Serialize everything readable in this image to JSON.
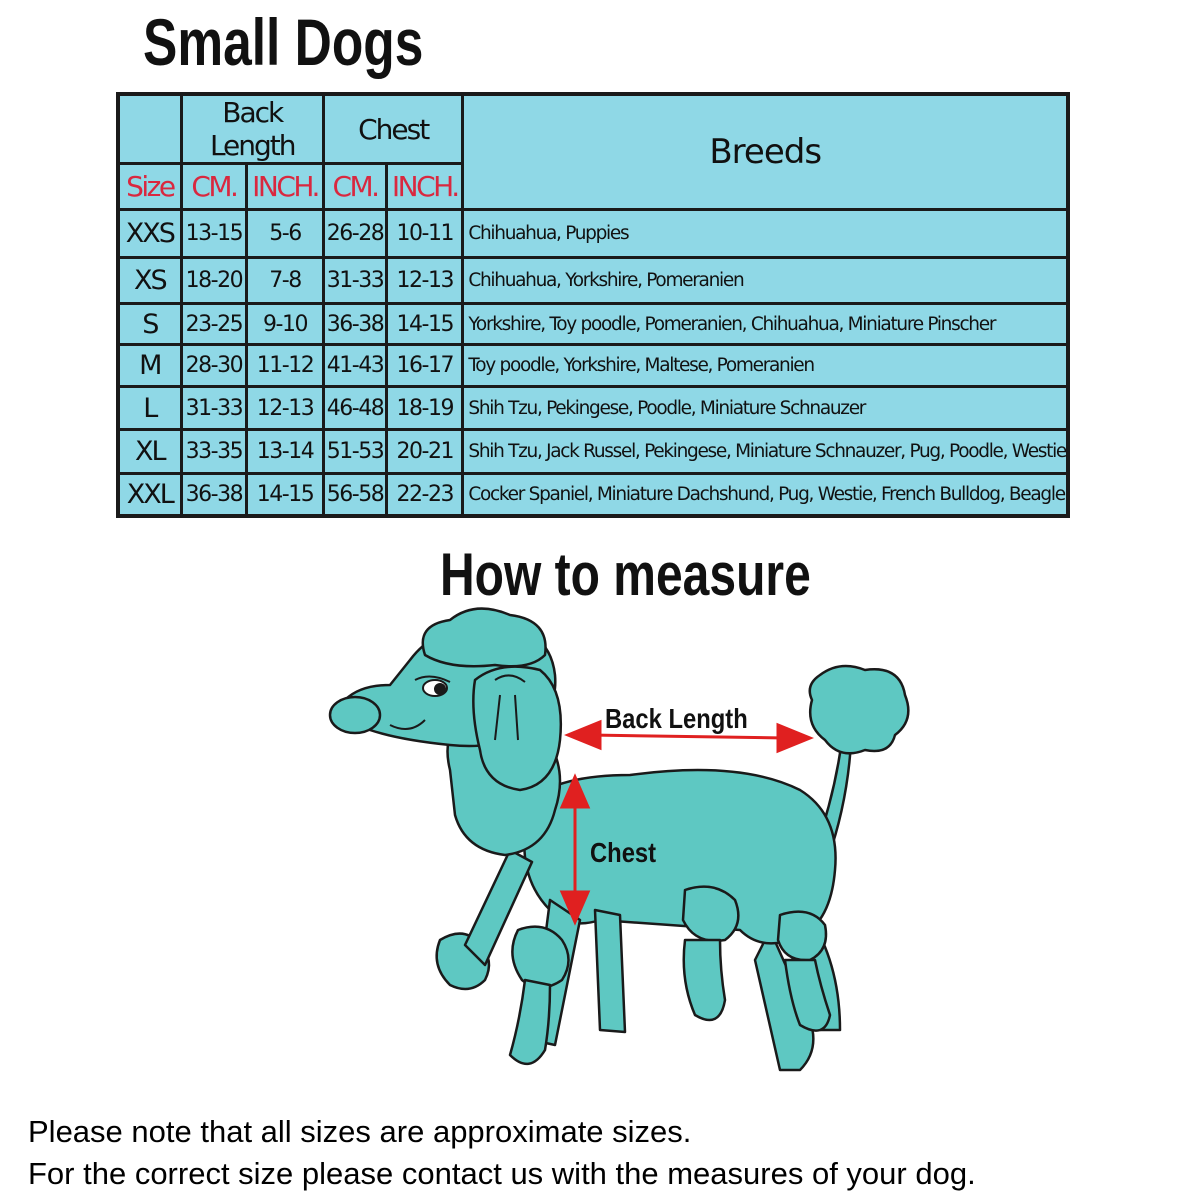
{
  "title": "Small Dogs",
  "table": {
    "group_headers": {
      "back_length": "Back Length",
      "chest": "Chest",
      "breeds": "Breeds"
    },
    "sub_headers": [
      "Size",
      "CM.",
      "INCH.",
      "CM.",
      "INCH."
    ],
    "rows": [
      {
        "size": "XXS",
        "back_cm": "13-15",
        "back_inch": "5-6",
        "chest_cm": "26-28",
        "chest_inch": "10-11",
        "breeds": "Chihuahua, Puppies"
      },
      {
        "size": "XS",
        "back_cm": "18-20",
        "back_inch": "7-8",
        "chest_cm": "31-33",
        "chest_inch": "12-13",
        "breeds": "Chihuahua, Yorkshire, Pomeranien"
      },
      {
        "size": "S",
        "back_cm": "23-25",
        "back_inch": "9-10",
        "chest_cm": "36-38",
        "chest_inch": "14-15",
        "breeds": "Yorkshire, Toy poodle, Pomeranien, Chihuahua, Miniature Pinscher"
      },
      {
        "size": "M",
        "back_cm": "28-30",
        "back_inch": "11-12",
        "chest_cm": "41-43",
        "chest_inch": "16-17",
        "breeds": "Toy poodle, Yorkshire, Maltese, Pomeranien"
      },
      {
        "size": "L",
        "back_cm": "31-33",
        "back_inch": "12-13",
        "chest_cm": "46-48",
        "chest_inch": "18-19",
        "breeds": "Shih Tzu, Pekingese, Poodle, Miniature Schnauzer"
      },
      {
        "size": "XL",
        "back_cm": "33-35",
        "back_inch": "13-14",
        "chest_cm": "51-53",
        "chest_inch": "20-21",
        "breeds": "Shih Tzu, Jack Russel, Pekingese, Miniature Schnauzer, Pug, Poodle, Westie"
      },
      {
        "size": "XXL",
        "back_cm": "36-38",
        "back_inch": "14-15",
        "chest_cm": "56-58",
        "chest_inch": "22-23",
        "breeds": "Cocker Spaniel, Miniature Dachshund, Pug, Westie, French Bulldog, Beagle"
      }
    ]
  },
  "measure": {
    "title": "How to measure",
    "back_length_label": "Back Length",
    "chest_label": "Chest"
  },
  "notes": [
    "Please note that all sizes are approximate sizes.",
    "For the correct size please contact us with the measures of your dog."
  ],
  "colors": {
    "table_bg": "#8fd8e6",
    "header_red": "#d9283f",
    "dog": "#5ec8c2",
    "arrow": "#e02020"
  }
}
